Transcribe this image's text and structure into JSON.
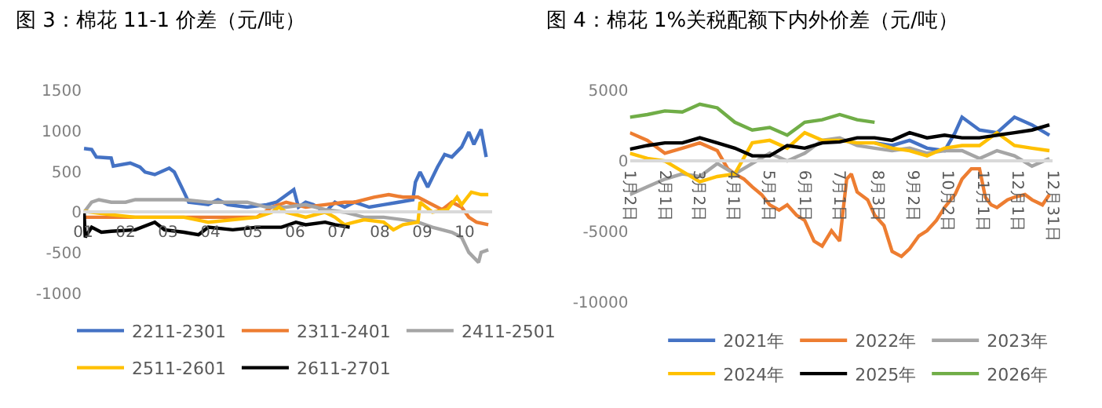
{
  "chart_data": [
    {
      "type": "line",
      "title": "图 3：棉花 11-1 价差（元/吨）",
      "legend": "bottom",
      "grid": false,
      "ylim": [
        -1000,
        1500
      ],
      "yticks": [
        -1000,
        -500,
        0,
        500,
        1000,
        1500
      ],
      "xlim": [
        1,
        10.65
      ],
      "xticks": [
        {
          "value": 1,
          "label": "01"
        },
        {
          "value": 2,
          "label": "02"
        },
        {
          "value": 3,
          "label": "03"
        },
        {
          "value": 4,
          "label": "04"
        },
        {
          "value": 5,
          "label": "05"
        },
        {
          "value": 6,
          "label": "06"
        },
        {
          "value": 7,
          "label": "07"
        },
        {
          "value": 8,
          "label": "08"
        },
        {
          "value": 9,
          "label": "09"
        },
        {
          "value": 10,
          "label": "10"
        }
      ],
      "series": [
        {
          "name": "2211-2301",
          "color": "#4472c4",
          "x": [
            1.02,
            1.2,
            1.31,
            1.66,
            1.71,
            2.11,
            2.34,
            2.46,
            2.69,
            3.03,
            3.15,
            3.38,
            3.49,
            3.95,
            4.18,
            4.41,
            4.87,
            5.33,
            5.56,
            5.97,
            6.08,
            6.25,
            6.43,
            6.71,
            6.94,
            7.17,
            7.4,
            7.75,
            8.09,
            8.44,
            8.78,
            8.84,
            8.95,
            9.13,
            9.36,
            9.53,
            9.7,
            9.93,
            10.1,
            10.22,
            10.39,
            10.51
          ],
          "values": [
            784,
            771,
            679,
            666,
            568,
            605,
            555,
            494,
            463,
            543,
            494,
            247,
            123,
            93,
            154,
            93,
            62,
            93,
            123,
            278,
            62,
            123,
            93,
            0,
            123,
            62,
            123,
            62,
            93,
            123,
            154,
            370,
            494,
            309,
            555,
            710,
            679,
            802,
            987,
            833,
            1018,
            679
          ]
        },
        {
          "name": "2311-2401",
          "color": "#ed7d31",
          "x": [
            1.02,
            1.66,
            2.34,
            3.03,
            3.72,
            4.41,
            5.1,
            5.45,
            5.79,
            6.25,
            6.71,
            7.17,
            7.4,
            7.86,
            8.21,
            8.55,
            8.9,
            9.13,
            9.47,
            9.7,
            9.93,
            10.1,
            10.28,
            10.56
          ],
          "values": [
            -62,
            -62,
            -62,
            -62,
            -62,
            -62,
            -62,
            62,
            123,
            62,
            93,
            123,
            123,
            185,
            216,
            185,
            185,
            123,
            31,
            123,
            62,
            -62,
            -123,
            -154
          ]
        },
        {
          "name": "2411-2501",
          "color": "#a5a5a5",
          "x": [
            1.02,
            1.2,
            1.37,
            1.66,
            2.0,
            2.23,
            2.8,
            3.38,
            3.95,
            4.53,
            4.87,
            5.33,
            5.79,
            6.25,
            6.71,
            7.17,
            7.63,
            8.09,
            8.55,
            8.9,
            9.24,
            9.7,
            9.93,
            10.1,
            10.33,
            10.39,
            10.56
          ],
          "values": [
            0,
            123,
            154,
            123,
            123,
            154,
            154,
            154,
            123,
            123,
            123,
            62,
            62,
            93,
            31,
            0,
            -62,
            -62,
            -93,
            -123,
            -185,
            -247,
            -309,
            -494,
            -617,
            -494,
            -463
          ]
        },
        {
          "name": "2511-2601",
          "color": "#ffc000",
          "x": [
            1.02,
            1.66,
            2.23,
            2.8,
            3.38,
            3.95,
            4.53,
            5.1,
            5.45,
            5.62,
            5.79,
            6.25,
            6.71,
            6.94,
            7.17,
            7.4,
            7.63,
            8.09,
            8.32,
            8.55,
            8.9,
            8.95,
            9.24,
            9.59,
            9.82,
            9.93,
            10.16,
            10.39,
            10.56
          ],
          "values": [
            12,
            -31,
            -62,
            -62,
            -62,
            -123,
            -93,
            -62,
            0,
            62,
            0,
            -62,
            0,
            -62,
            -154,
            -123,
            -93,
            -123,
            -216,
            -154,
            -123,
            123,
            0,
            31,
            185,
            93,
            247,
            216,
            216
          ]
        },
        {
          "name": "2611-2701",
          "color": "#000000",
          "x": [
            1.02,
            1.05,
            1.2,
            1.43,
            1.66,
            2.23,
            2.69,
            2.92,
            3.38,
            3.72,
            3.95,
            4.53,
            5.1,
            5.68,
            6.02,
            6.25,
            6.71,
            6.94,
            7.29
          ],
          "values": [
            0,
            -309,
            -185,
            -247,
            -234,
            -216,
            -123,
            -216,
            -247,
            -278,
            -185,
            -216,
            -185,
            -185,
            -123,
            -154,
            -123,
            -154,
            -185
          ]
        }
      ]
    },
    {
      "type": "line",
      "title": "图 4：棉花 1%关税配额下内外价差（元/吨）",
      "legend": "bottom",
      "grid": false,
      "ylim": [
        -10000,
        5000
      ],
      "yticks": [
        -10000,
        -5000,
        0,
        5000
      ],
      "xlim": [
        "--01-02",
        "--12-31"
      ],
      "xticks": [
        {
          "value": "--01-02",
          "label": "1月2日"
        },
        {
          "value": "--02-01",
          "label": "2月1日"
        },
        {
          "value": "--03-02",
          "label": "3月2日"
        },
        {
          "value": "--04-01",
          "label": "4月1日"
        },
        {
          "value": "--05-01",
          "label": "5月1日"
        },
        {
          "value": "--06-01",
          "label": "6月1日"
        },
        {
          "value": "--07-01",
          "label": "7月1日"
        },
        {
          "value": "--08-03",
          "label": "8月3日"
        },
        {
          "value": "--09-02",
          "label": "9月2日"
        },
        {
          "value": "--10-02",
          "label": "10月2日"
        },
        {
          "value": "--11-01",
          "label": "11月1日"
        },
        {
          "value": "--12-01",
          "label": "12月1日"
        },
        {
          "value": "--12-31",
          "label": "12月31日"
        }
      ],
      "series": [
        {
          "name": "2021年",
          "color": "#4472c4",
          "x": [
            "--07-31",
            "--08-15",
            "--08-30",
            "--09-14",
            "--09-29",
            "--10-08",
            "--10-14",
            "--10-29",
            "--11-13",
            "--11-28",
            "--12-13",
            "--12-28"
          ],
          "values": [
            1280,
            1095,
            1460,
            910,
            730,
            2000,
            3100,
            2190,
            2000,
            3100,
            2555,
            1825
          ]
        },
        {
          "name": "2022年",
          "color": "#ed7d31",
          "x": [
            "--01-02",
            "--01-17",
            "--02-01",
            "--02-16",
            "--03-03",
            "--03-18",
            "--03-27",
            "--04-02",
            "--04-10",
            "--04-17",
            "--04-25",
            "--05-02",
            "--05-10",
            "--05-17",
            "--05-25",
            "--06-01",
            "--06-09",
            "--06-16",
            "--06-24",
            "--07-01",
            "--07-07",
            "--07-11",
            "--07-16",
            "--07-25",
            "--07-31",
            "--08-08",
            "--08-15",
            "--08-23",
            "--08-30",
            "--09-07",
            "--09-14",
            "--09-22",
            "--09-29",
            "--10-08",
            "--10-14",
            "--10-22",
            "--10-29",
            "--11-03",
            "--11-08",
            "--11-13",
            "--11-22",
            "--11-28",
            "--12-07",
            "--12-13",
            "--12-22",
            "--12-28"
          ],
          "values": [
            2000,
            1460,
            550,
            910,
            1280,
            730,
            -550,
            -910,
            -1280,
            -1825,
            -2370,
            -3100,
            -3470,
            -3100,
            -3830,
            -4200,
            -5660,
            -6020,
            -4930,
            -5660,
            -1280,
            -910,
            -2190,
            -2740,
            -3830,
            -4560,
            -6390,
            -6750,
            -6200,
            -5290,
            -4930,
            -4200,
            -3285,
            -2370,
            -1280,
            -550,
            -550,
            -2555,
            -3100,
            -3285,
            -2740,
            -2555,
            -2370,
            -2740,
            -3100,
            -2370
          ]
        },
        {
          "name": "2023年",
          "color": "#a5a5a5",
          "x": [
            "--01-02",
            "--01-17",
            "--02-01",
            "--02-16",
            "--03-03",
            "--03-18",
            "--04-02",
            "--04-17",
            "--05-02",
            "--05-17",
            "--06-01",
            "--06-16",
            "--07-01",
            "--07-16",
            "--07-31",
            "--08-15",
            "--08-30",
            "--09-14",
            "--09-29",
            "--10-14",
            "--10-29",
            "--11-13",
            "--11-28",
            "--12-13",
            "--12-28"
          ],
          "values": [
            -2370,
            -1825,
            -1280,
            -910,
            -1095,
            -180,
            -910,
            -180,
            550,
            0,
            550,
            1460,
            1640,
            1095,
            910,
            730,
            910,
            550,
            730,
            730,
            180,
            730,
            365,
            -365,
            180
          ]
        },
        {
          "name": "2024年",
          "color": "#ffc000",
          "x": [
            "--01-02",
            "--01-17",
            "--02-01",
            "--02-16",
            "--03-03",
            "--03-18",
            "--04-02",
            "--04-17",
            "--05-02",
            "--05-17",
            "--06-01",
            "--06-16",
            "--07-01",
            "--07-16",
            "--07-31",
            "--08-15",
            "--08-30",
            "--09-14",
            "--09-29",
            "--10-14",
            "--10-29",
            "--11-13",
            "--11-28",
            "--12-13",
            "--12-28"
          ],
          "values": [
            550,
            180,
            0,
            -730,
            -1460,
            -1095,
            -910,
            1280,
            1460,
            910,
            2000,
            1460,
            1460,
            1280,
            1280,
            910,
            730,
            365,
            910,
            1095,
            1095,
            2000,
            1095,
            910,
            730
          ]
        },
        {
          "name": "2025年",
          "color": "#000000",
          "x": [
            "--01-02",
            "--01-17",
            "--02-01",
            "--02-16",
            "--03-03",
            "--03-18",
            "--04-02",
            "--04-17",
            "--05-02",
            "--05-17",
            "--06-01",
            "--06-16",
            "--07-01",
            "--07-16",
            "--07-31",
            "--08-15",
            "--08-30",
            "--09-14",
            "--09-29",
            "--10-14",
            "--10-29",
            "--11-13",
            "--11-28",
            "--12-13",
            "--12-28"
          ],
          "values": [
            840,
            1095,
            1280,
            1280,
            1640,
            1280,
            910,
            365,
            365,
            1095,
            910,
            1280,
            1350,
            1640,
            1640,
            1460,
            2000,
            1640,
            1825,
            1640,
            1640,
            1825,
            2000,
            2190,
            2555
          ]
        },
        {
          "name": "2026年",
          "color": "#70ad47",
          "x": [
            "--01-02",
            "--01-17",
            "--02-01",
            "--02-16",
            "--03-03",
            "--03-18",
            "--04-02",
            "--04-17",
            "--05-02",
            "--05-17",
            "--06-01",
            "--06-16",
            "--07-01",
            "--07-16",
            "--07-31"
          ],
          "values": [
            3100,
            3285,
            3540,
            3470,
            4015,
            3760,
            2740,
            2190,
            2370,
            1825,
            2740,
            2920,
            3285,
            2920,
            2740
          ]
        }
      ]
    }
  ]
}
